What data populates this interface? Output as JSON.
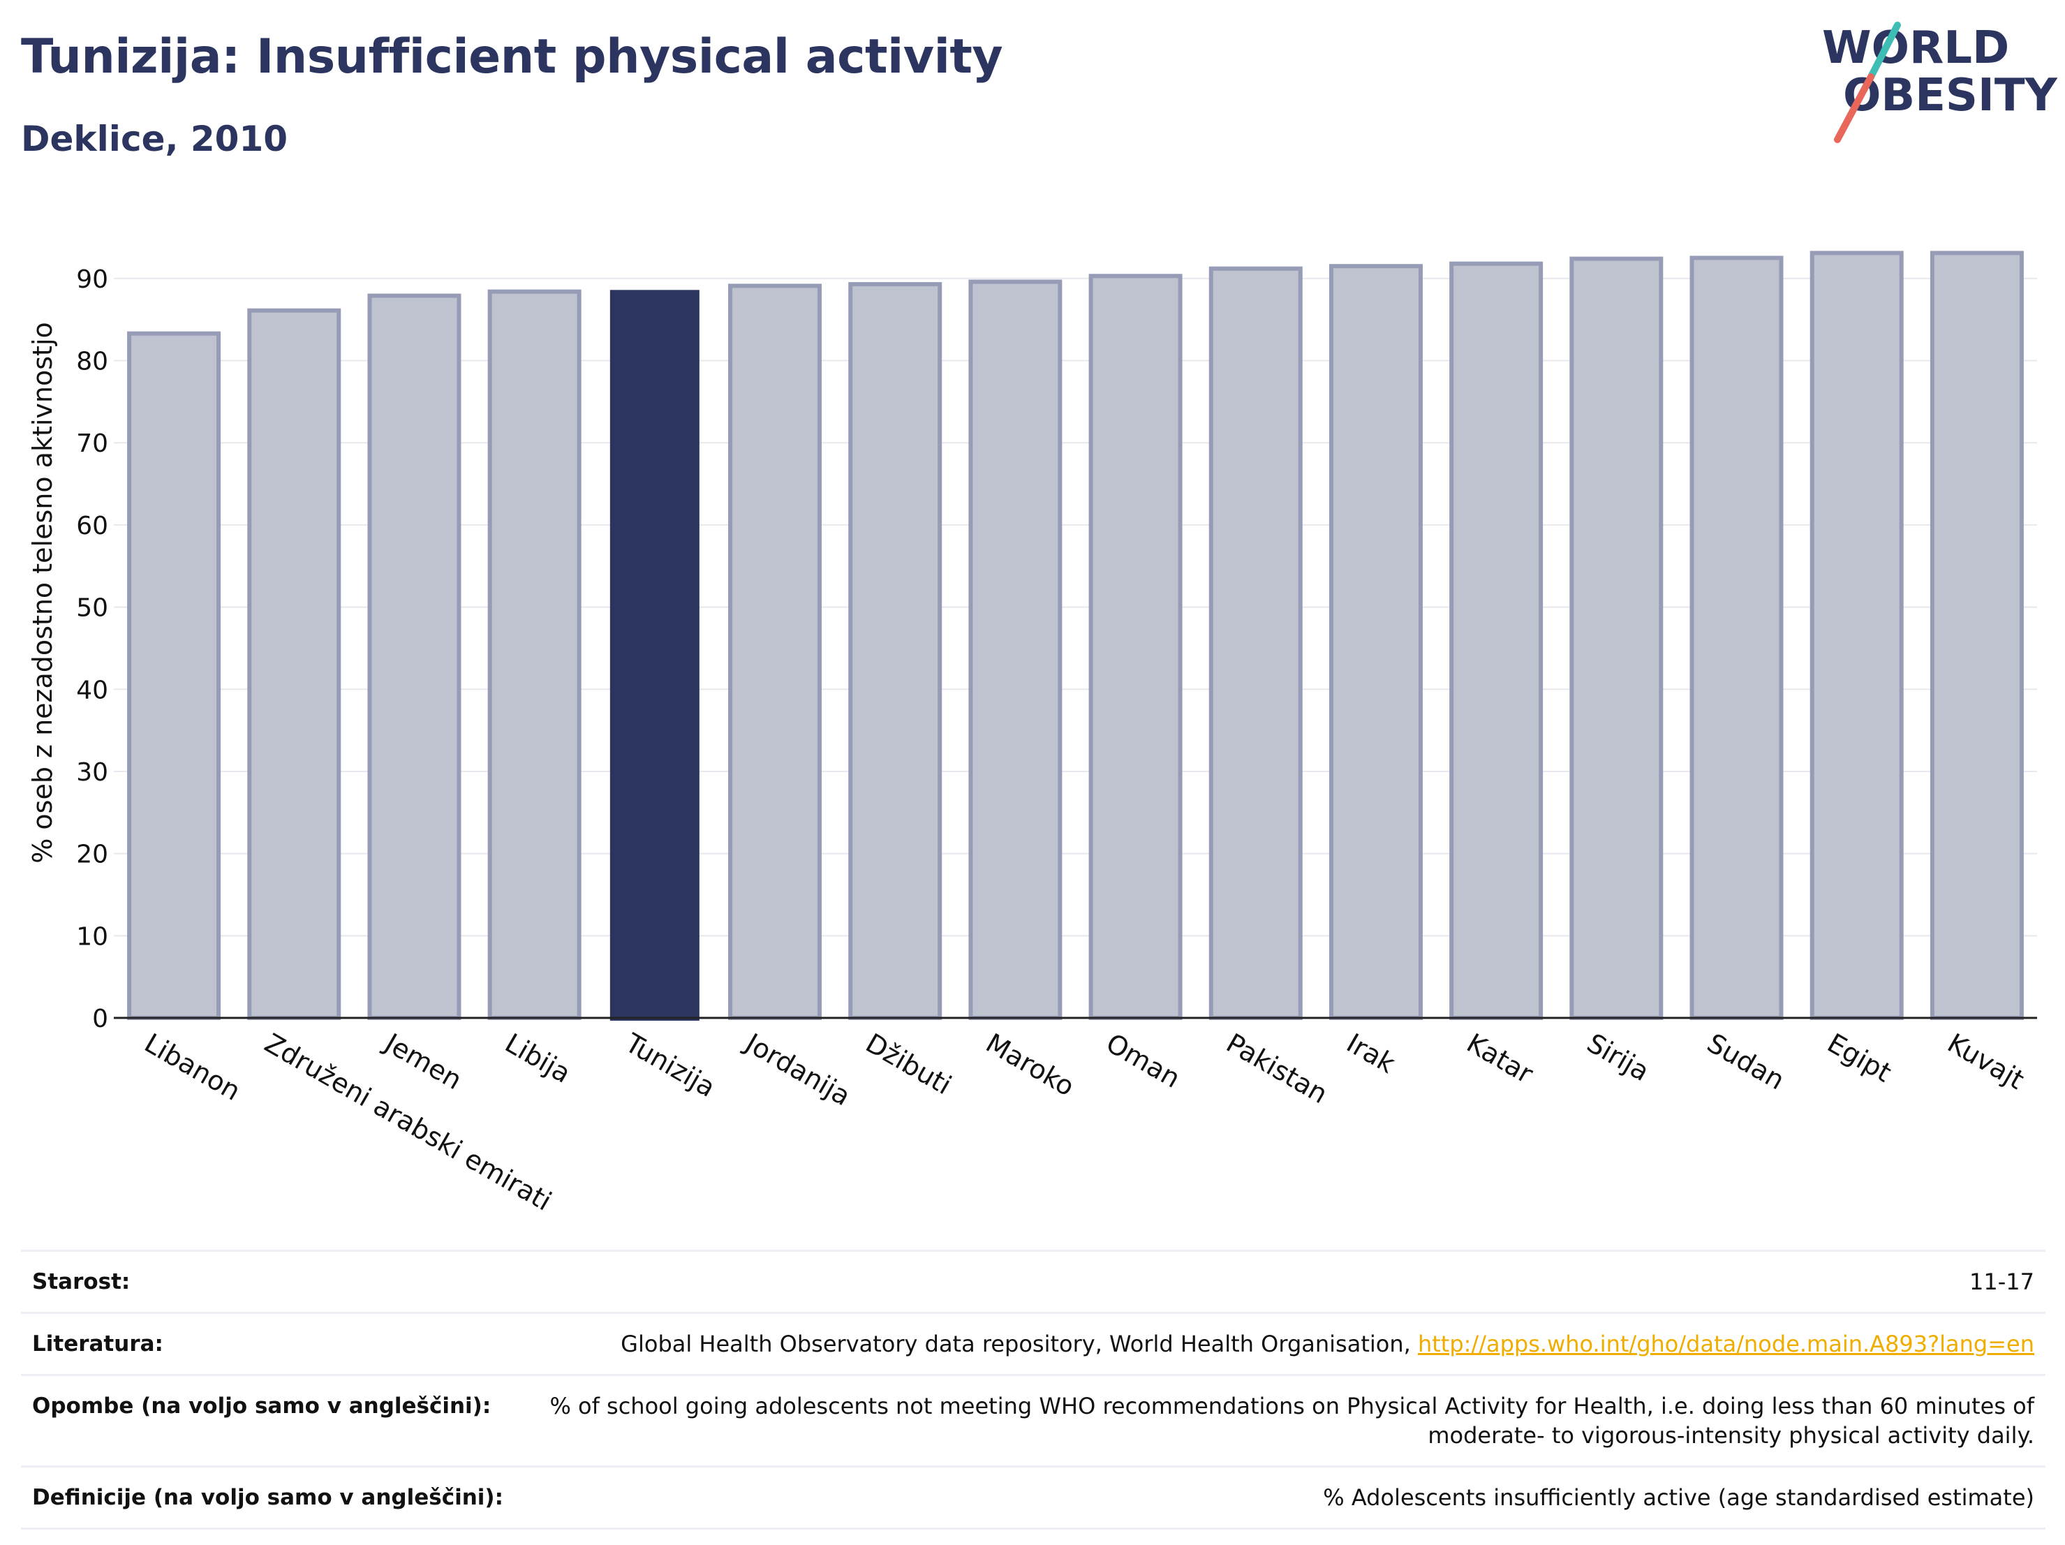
{
  "header": {
    "title": "Tunizija: Insufficient physical activity",
    "subtitle": "Deklice, 2010"
  },
  "logo": {
    "line1": "WORLD",
    "line2": "OBESITY",
    "text_color": "#2b3560",
    "slash_top_color": "#3dbdb3",
    "slash_bottom_color": "#e8675a"
  },
  "colors": {
    "highlight": "#2b3560",
    "bar": "#bfc3d0",
    "bar_edge": "#969cb5",
    "grid": "#e8e8ee",
    "link": "#f0ad00"
  },
  "chart_data": {
    "type": "bar",
    "ylabel": "% oseb z nezadostno telesno aktivnostjo",
    "ylim": [
      0,
      95
    ],
    "yticks": [
      0,
      10,
      20,
      30,
      40,
      50,
      60,
      70,
      80,
      90
    ],
    "grid": true,
    "highlight": "Tunizija",
    "categories": [
      "Libanon",
      "Združeni arabski emirati",
      "Jemen",
      "Libija",
      "Tunizija",
      "Jordanija",
      "Džibuti",
      "Maroko",
      "Oman",
      "Pakistan",
      "Irak",
      "Katar",
      "Sirija",
      "Sudan",
      "Egipt",
      "Kuvajt"
    ],
    "values": [
      83.3,
      86.1,
      87.9,
      88.4,
      88.6,
      89.1,
      89.3,
      89.6,
      90.3,
      91.2,
      91.5,
      91.8,
      92.4,
      92.5,
      93.1,
      93.1
    ]
  },
  "meta": [
    {
      "label": "Starost:",
      "value": "11-17"
    },
    {
      "label": "Literatura:",
      "value": "Global Health Observatory data repository, World Health Organisation, ",
      "link": "http://apps.who.int/gho/data/node.main.A893?lang=en"
    },
    {
      "label": "Opombe (na voljo samo v angleščini):",
      "value": "% of school going adolescents not meeting WHO recommendations on Physical Activity for Health, i.e. doing less than 60 minutes of moderate- to vigorous-intensity physical activity daily."
    },
    {
      "label": "Definicije (na voljo samo v angleščini):",
      "value": "% Adolescents insufficiently active (age standardised estimate)"
    }
  ]
}
